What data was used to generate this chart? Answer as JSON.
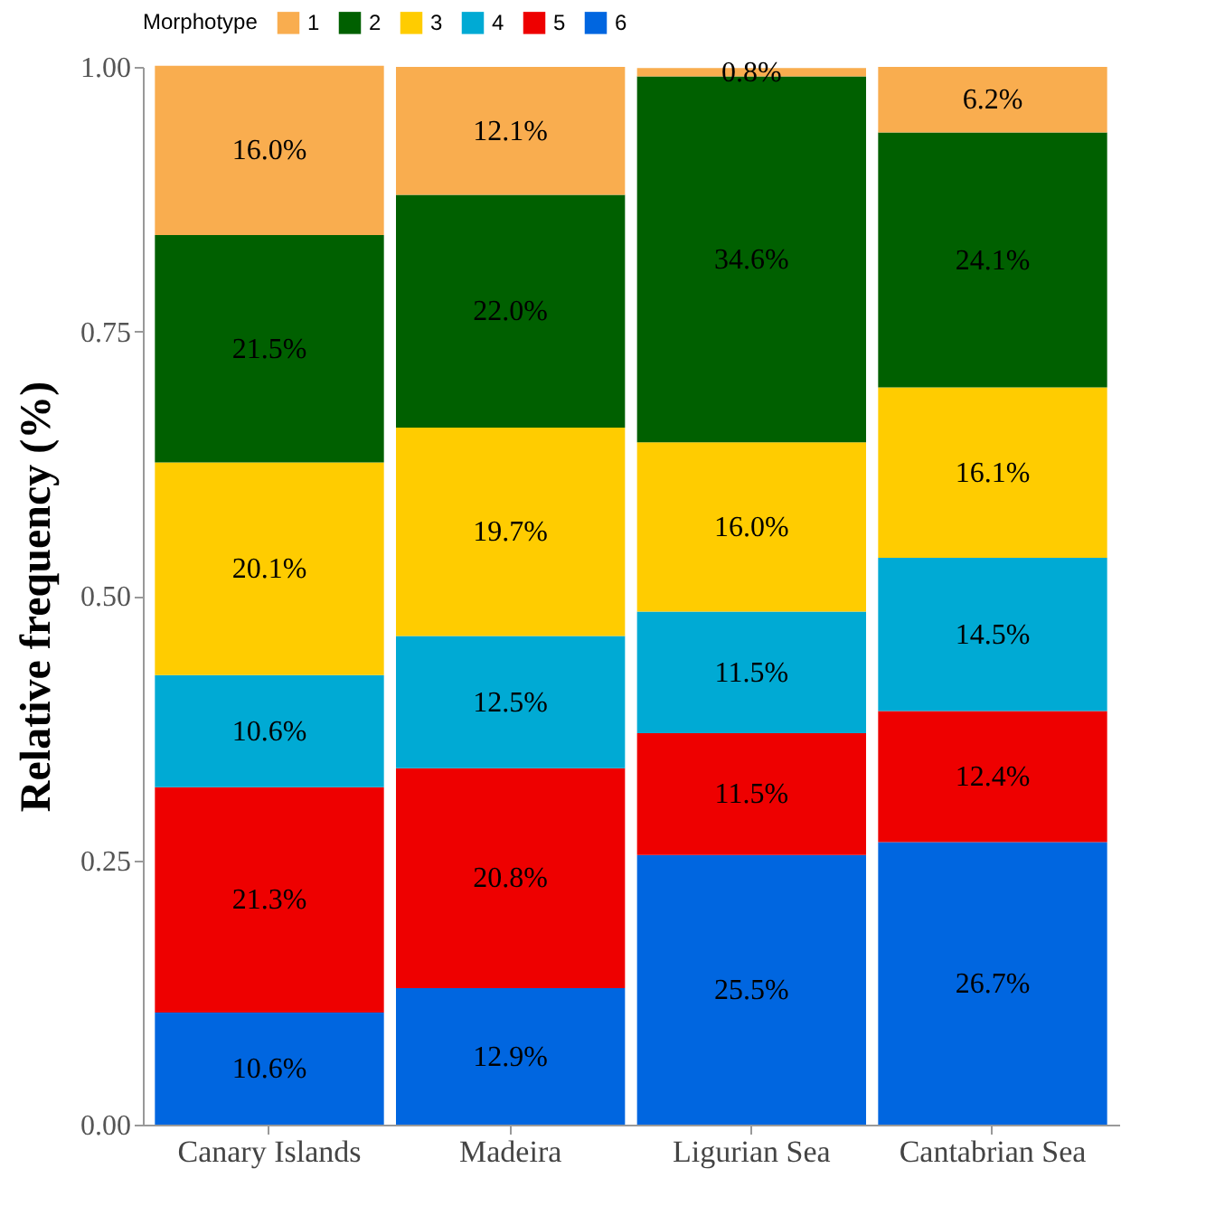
{
  "chart_data": {
    "type": "bar",
    "stacked": true,
    "ylabel": "Relative frequency (%)",
    "legend_title": "Morphotype",
    "legend": "top",
    "categories": [
      "Canary Islands",
      "Madeira",
      "Ligurian Sea",
      "Cantabrian Sea"
    ],
    "series": [
      {
        "name": "6",
        "color": "#0066e0",
        "values": [
          0.106,
          0.129,
          0.255,
          0.267
        ],
        "value_labels": [
          "10.6%",
          "12.9%",
          "25.5%",
          "26.7%"
        ]
      },
      {
        "name": "5",
        "color": "#ee0000",
        "values": [
          0.213,
          0.208,
          0.115,
          0.124
        ],
        "value_labels": [
          "21.3%",
          "20.8%",
          "11.5%",
          "12.4%"
        ]
      },
      {
        "name": "4",
        "color": "#00aad4",
        "values": [
          0.106,
          0.125,
          0.115,
          0.145
        ],
        "value_labels": [
          "10.6%",
          "12.5%",
          "11.5%",
          "14.5%"
        ]
      },
      {
        "name": "3",
        "color": "#ffcc00",
        "values": [
          0.201,
          0.197,
          0.16,
          0.161
        ],
        "value_labels": [
          "20.1%",
          "19.7%",
          "16.0%",
          "16.1%"
        ]
      },
      {
        "name": "2",
        "color": "#006000",
        "values": [
          0.215,
          0.22,
          0.346,
          0.241
        ],
        "value_labels": [
          "21.5%",
          "22.0%",
          "34.6%",
          "24.1%"
        ]
      },
      {
        "name": "1",
        "color": "#f9ad4f",
        "values": [
          0.16,
          0.121,
          0.008,
          0.062
        ],
        "value_labels": [
          "16.0%",
          "12.1%",
          "0.8%",
          "6.2%"
        ]
      }
    ],
    "ylim": [
      0,
      1
    ],
    "yticks": [
      {
        "value": 0,
        "label": "0.00"
      },
      {
        "value": 0.25,
        "label": "0.25"
      },
      {
        "value": 0.5,
        "label": "0.50"
      },
      {
        "value": 0.75,
        "label": "0.75"
      },
      {
        "value": 1,
        "label": "1.00"
      }
    ],
    "grid": false
  }
}
